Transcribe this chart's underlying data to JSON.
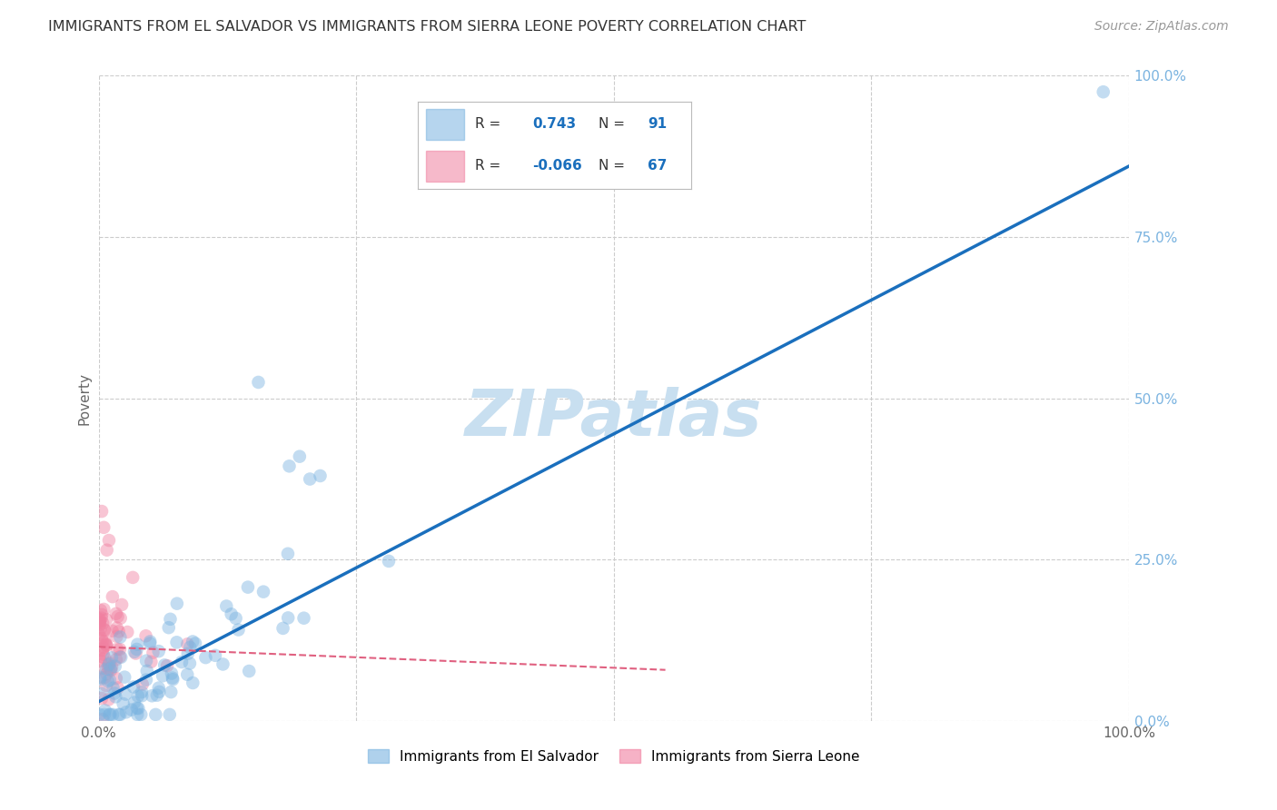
{
  "title": "IMMIGRANTS FROM EL SALVADOR VS IMMIGRANTS FROM SIERRA LEONE POVERTY CORRELATION CHART",
  "source": "Source: ZipAtlas.com",
  "ylabel": "Poverty",
  "xlim": [
    0,
    1
  ],
  "ylim": [
    0,
    1
  ],
  "el_salvador_R": 0.743,
  "el_salvador_N": 91,
  "sierra_leone_R": -0.066,
  "sierra_leone_N": 67,
  "scatter_color_blue": "#7ab3e0",
  "scatter_color_pink": "#f080a0",
  "regression_blue": "#1a6fbd",
  "regression_pink": "#e06080",
  "background_color": "#ffffff",
  "grid_color": "#cccccc",
  "title_color": "#333333",
  "right_axis_color": "#7ab3e0",
  "watermark_color": "#c8dff0",
  "watermark": "ZIPatlas",
  "blue_slope": 0.83,
  "blue_intercept": 0.03,
  "pink_slope": -0.065,
  "pink_intercept": 0.115,
  "legend_blue_r": "0.743",
  "legend_blue_n": "91",
  "legend_pink_r": "-0.066",
  "legend_pink_n": "67"
}
